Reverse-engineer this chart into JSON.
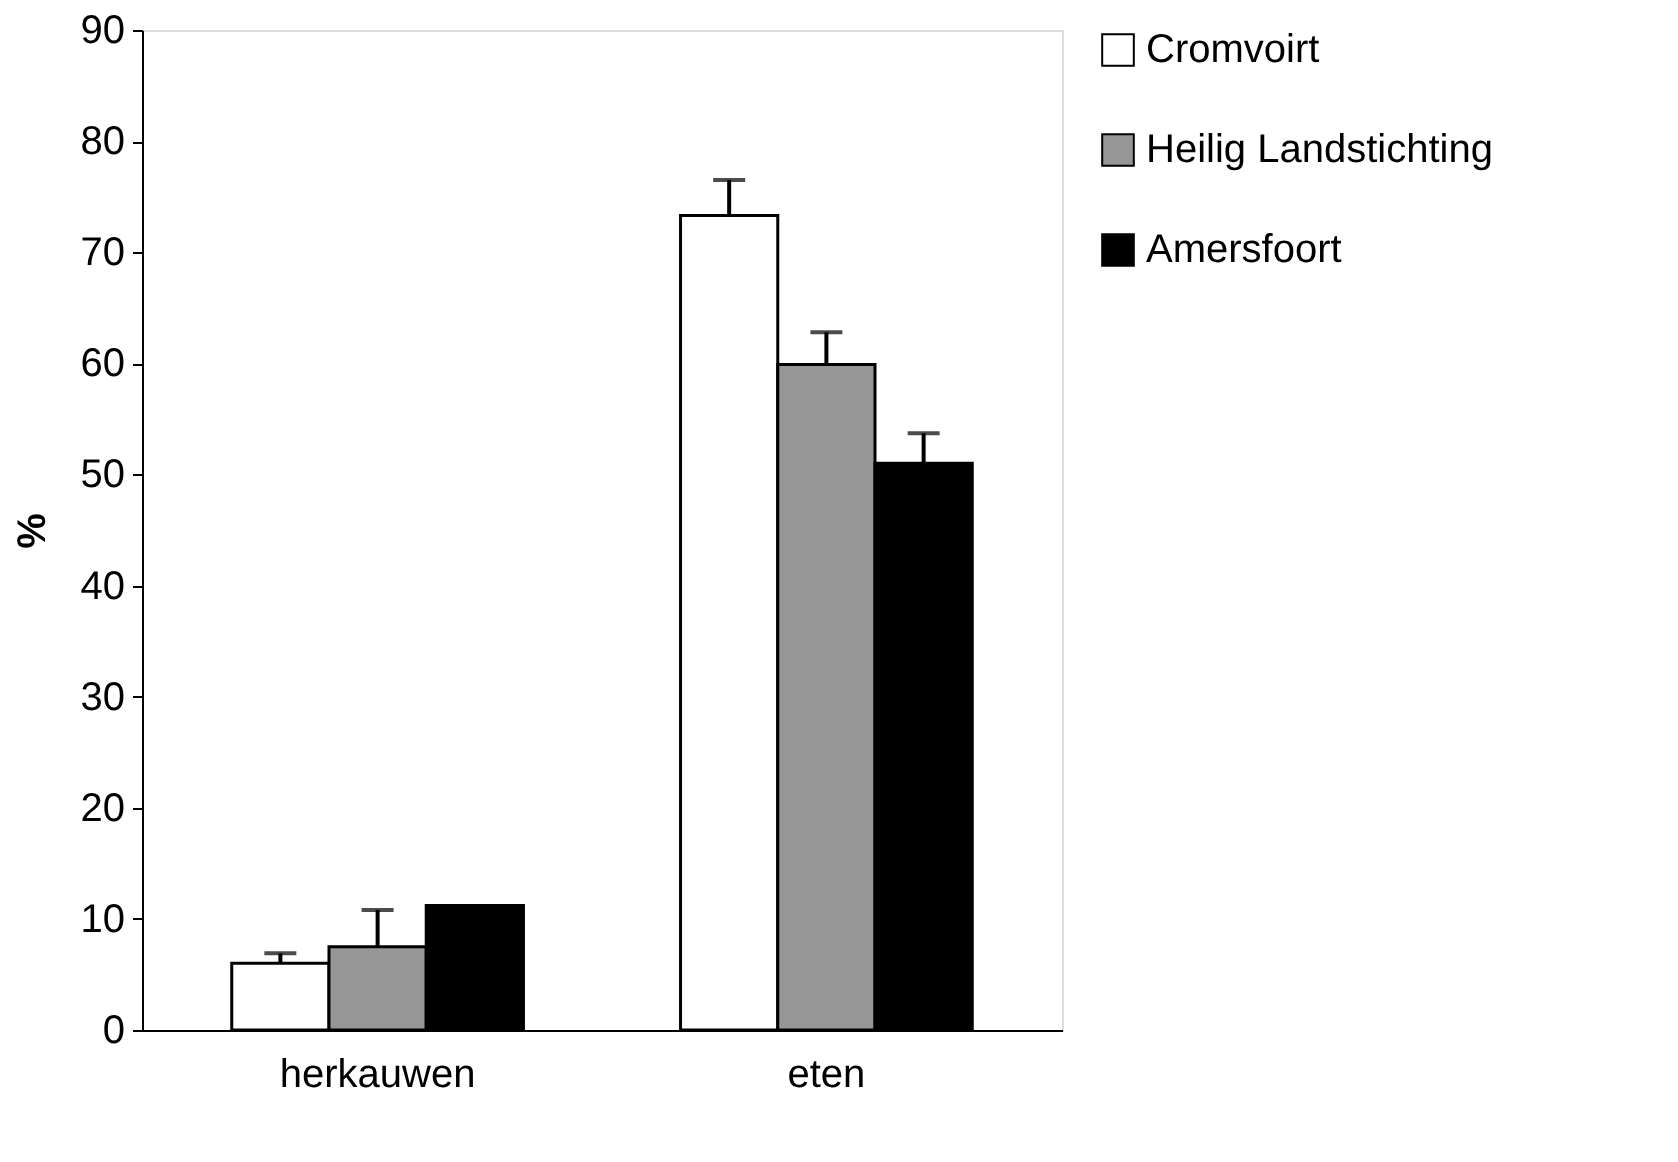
{
  "chart_data": {
    "type": "bar",
    "categories": [
      "herkauwen",
      "eten"
    ],
    "ylabel": "%",
    "series": [
      {
        "name": "Cromvoirt",
        "color": "#ffffff",
        "values": [
          6.0,
          73.3
        ],
        "errors": [
          [
            6.0,
            6.9
          ],
          [
            73.3,
            76.5
          ]
        ]
      },
      {
        "name": "Heilig Landstichting",
        "color": "#969696",
        "values": [
          7.5,
          59.9
        ],
        "errors": [
          [
            7.5,
            10.8
          ],
          [
            59.9,
            62.8
          ]
        ]
      },
      {
        "name": "Amersfoort",
        "color": "#000000",
        "values": [
          11.2,
          51.0
        ],
        "errors": [
          null,
          [
            51.0,
            53.7
          ]
        ]
      }
    ],
    "ylim": [
      0,
      90
    ],
    "yticks": [
      0,
      10,
      20,
      30,
      40,
      50,
      60,
      70,
      80,
      90
    ],
    "grid": false,
    "legend": "right"
  }
}
